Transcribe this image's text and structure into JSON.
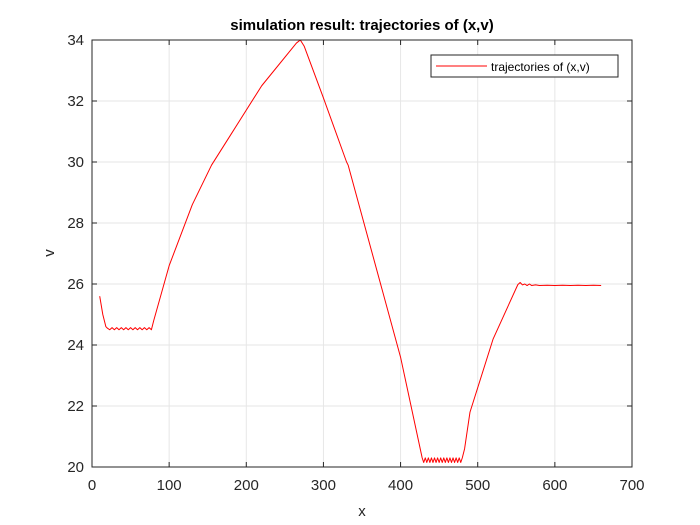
{
  "chart_data": {
    "type": "line",
    "title": "simulation result: trajectories of (x,v)",
    "xlabel": "x",
    "ylabel": "v",
    "xlim": [
      0,
      700
    ],
    "ylim": [
      20,
      34
    ],
    "xticks": [
      0,
      100,
      200,
      300,
      400,
      500,
      600,
      700
    ],
    "yticks": [
      20,
      22,
      24,
      26,
      28,
      30,
      32,
      34
    ],
    "grid": true,
    "legend_location": "top-right",
    "series": [
      {
        "name": "trajectories of (x,v)",
        "color": "#ff0000",
        "x": [
          10,
          14,
          18,
          20,
          23,
          26,
          29,
          32,
          35,
          38,
          41,
          44,
          47,
          50,
          53,
          56,
          59,
          62,
          65,
          68,
          71,
          74,
          77,
          80,
          100,
          130,
          155,
          180,
          220,
          265,
          270,
          275,
          300,
          330,
          332,
          400,
          428,
          430,
          432,
          434,
          436,
          438,
          440,
          442,
          444,
          446,
          448,
          450,
          452,
          454,
          456,
          458,
          460,
          462,
          464,
          466,
          468,
          470,
          472,
          474,
          476,
          478,
          480,
          483,
          490,
          520,
          552,
          555,
          558,
          561,
          564,
          567,
          570,
          575,
          580,
          590,
          600,
          610,
          620,
          630,
          640,
          650,
          660
        ],
        "y": [
          25.6,
          25.0,
          24.6,
          24.55,
          24.5,
          24.57,
          24.5,
          24.57,
          24.5,
          24.57,
          24.5,
          24.57,
          24.5,
          24.57,
          24.5,
          24.57,
          24.5,
          24.57,
          24.5,
          24.57,
          24.5,
          24.57,
          24.5,
          24.8,
          26.6,
          28.6,
          29.9,
          30.9,
          32.5,
          33.9,
          34.0,
          33.8,
          32.1,
          30.0,
          29.9,
          23.6,
          20.3,
          20.15,
          20.3,
          20.15,
          20.3,
          20.15,
          20.3,
          20.15,
          20.3,
          20.15,
          20.3,
          20.15,
          20.3,
          20.15,
          20.3,
          20.15,
          20.3,
          20.15,
          20.3,
          20.15,
          20.3,
          20.15,
          20.3,
          20.15,
          20.3,
          20.15,
          20.3,
          20.6,
          21.8,
          24.2,
          25.98,
          26.05,
          25.97,
          26.0,
          25.95,
          26.0,
          25.95,
          25.97,
          25.95,
          25.96,
          25.95,
          25.96,
          25.95,
          25.96,
          25.95,
          25.96,
          25.95
        ]
      }
    ]
  }
}
